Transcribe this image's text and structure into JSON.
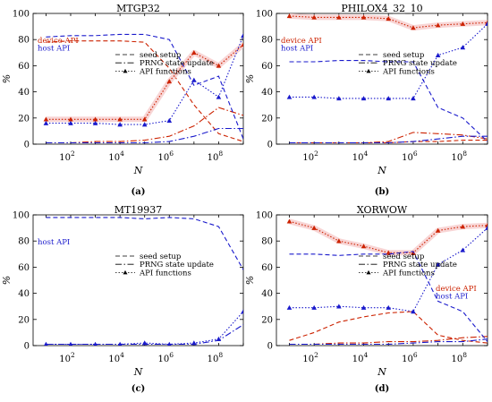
{
  "chart_data": [
    {
      "panel": "a",
      "type": "line",
      "title": "MTGP32",
      "caption": "(a)",
      "xlabel": "N",
      "ylabel": "%",
      "xscale": "log",
      "xlim": [
        3,
        1000000000
      ],
      "ylim": [
        0,
        100
      ],
      "xticks": [
        {
          "value": 100,
          "base": "10",
          "exp": "2"
        },
        {
          "value": 10000,
          "base": "10",
          "exp": "4"
        },
        {
          "value": 1000000,
          "base": "10",
          "exp": "6"
        },
        {
          "value": 100000000,
          "base": "10",
          "exp": "8"
        }
      ],
      "yticks": [
        0,
        20,
        40,
        60,
        80,
        100
      ],
      "x": [
        10,
        100,
        1000,
        10000,
        100000,
        1000000,
        10000000,
        100000000,
        1000000000
      ],
      "legend_groups": [
        {
          "position": "left",
          "lines": [
            {
              "text": "device API",
              "color": "#cc2200"
            },
            {
              "text": "host API",
              "color": "#1a1acc"
            }
          ]
        },
        {
          "position": "right",
          "lines": [
            {
              "text": "seed setup",
              "style": "dashed"
            },
            {
              "text": "PRNG state update",
              "style": "dashdot"
            },
            {
              "text": "API functions",
              "style": "dotted-triangle"
            }
          ]
        }
      ],
      "series": [
        {
          "name": "device API – seed setup",
          "api": "device",
          "style": "dashed",
          "values": [
            78,
            79,
            79,
            79,
            78,
            58,
            30,
            8,
            2
          ]
        },
        {
          "name": "device API – PRNG state update",
          "api": "device",
          "style": "dashdot",
          "values": [
            1,
            1,
            2,
            2,
            3,
            6,
            14,
            28,
            22
          ]
        },
        {
          "name": "device API – API functions",
          "api": "device",
          "style": "dotted-triangle",
          "values": [
            19,
            19,
            19,
            19,
            19,
            48,
            70,
            60,
            76
          ]
        },
        {
          "name": "host API – seed setup",
          "api": "host",
          "style": "dashed",
          "values": [
            82,
            83,
            83,
            84,
            84,
            80,
            45,
            52,
            4
          ]
        },
        {
          "name": "host API – PRNG state update",
          "api": "host",
          "style": "dashdot",
          "values": [
            1,
            1,
            1,
            1,
            1,
            2,
            6,
            12,
            12
          ]
        },
        {
          "name": "host API – API functions",
          "api": "host",
          "style": "dotted-triangle",
          "values": [
            16,
            16,
            16,
            15,
            15,
            18,
            49,
            36,
            83
          ]
        }
      ]
    },
    {
      "panel": "b",
      "type": "line",
      "title": "PHILOX4_32_10",
      "caption": "(b)",
      "xlabel": "N",
      "ylabel": "%",
      "xscale": "log",
      "xlim": [
        3,
        1000000000
      ],
      "ylim": [
        0,
        100
      ],
      "xticks": [
        {
          "value": 100,
          "base": "10",
          "exp": "2"
        },
        {
          "value": 10000,
          "base": "10",
          "exp": "4"
        },
        {
          "value": 1000000,
          "base": "10",
          "exp": "6"
        },
        {
          "value": 100000000,
          "base": "10",
          "exp": "8"
        }
      ],
      "yticks": [
        0,
        20,
        40,
        60,
        80,
        100
      ],
      "x": [
        10,
        100,
        1000,
        10000,
        100000,
        1000000,
        10000000,
        100000000,
        1000000000
      ],
      "legend_groups": [
        {
          "position": "right",
          "lines": [
            {
              "text": "seed setup",
              "style": "dashed"
            },
            {
              "text": "PRNG state update",
              "style": "dashdot"
            },
            {
              "text": "API functions",
              "style": "dotted-triangle"
            }
          ]
        },
        {
          "position": "left",
          "lines": [
            {
              "text": "device API",
              "color": "#cc2200"
            },
            {
              "text": "host API",
              "color": "#1a1acc"
            }
          ]
        }
      ],
      "series": [
        {
          "name": "device API – seed setup",
          "api": "device",
          "style": "dashed",
          "values": [
            1,
            1,
            1,
            1,
            1,
            2,
            2,
            3,
            3
          ]
        },
        {
          "name": "device API – PRNG state update",
          "api": "device",
          "style": "dashdot",
          "values": [
            1,
            1,
            1,
            1,
            2,
            9,
            8,
            7,
            4
          ]
        },
        {
          "name": "device API – API functions",
          "api": "device",
          "style": "dotted-triangle",
          "values": [
            98,
            97,
            97,
            97,
            96,
            89,
            91,
            92,
            93
          ]
        },
        {
          "name": "host API – seed setup",
          "api": "host",
          "style": "dashed",
          "values": [
            63,
            63,
            64,
            64,
            63,
            63,
            28,
            20,
            2
          ]
        },
        {
          "name": "host API – PRNG state update",
          "api": "host",
          "style": "dashdot",
          "values": [
            1,
            1,
            1,
            1,
            1,
            2,
            4,
            6,
            6
          ]
        },
        {
          "name": "host API – API functions",
          "api": "host",
          "style": "dotted-triangle",
          "values": [
            36,
            36,
            35,
            35,
            35,
            35,
            68,
            74,
            92
          ]
        }
      ]
    },
    {
      "panel": "c",
      "type": "line",
      "title": "MT19937",
      "caption": "(c)",
      "xlabel": "N",
      "ylabel": "%",
      "xscale": "log",
      "xlim": [
        3,
        1000000000
      ],
      "ylim": [
        0,
        100
      ],
      "xticks": [
        {
          "value": 100,
          "base": "10",
          "exp": "2"
        },
        {
          "value": 10000,
          "base": "10",
          "exp": "4"
        },
        {
          "value": 1000000,
          "base": "10",
          "exp": "6"
        },
        {
          "value": 100000000,
          "base": "10",
          "exp": "8"
        }
      ],
      "yticks": [
        0,
        20,
        40,
        60,
        80,
        100
      ],
      "x": [
        10,
        100,
        1000,
        10000,
        100000,
        1000000,
        10000000,
        100000000,
        1000000000
      ],
      "legend_groups": [
        {
          "position": "left",
          "lines": [
            {
              "text": "host API",
              "color": "#1a1acc"
            }
          ]
        },
        {
          "position": "right",
          "lines": [
            {
              "text": "seed setup",
              "style": "dashed"
            },
            {
              "text": "PRNG state update",
              "style": "dashdot"
            },
            {
              "text": "API functions",
              "style": "dotted-triangle"
            }
          ]
        }
      ],
      "series": [
        {
          "name": "host API – seed setup",
          "api": "host",
          "style": "dashed",
          "values": [
            98,
            98,
            98,
            98,
            97,
            98,
            97,
            91,
            58
          ]
        },
        {
          "name": "host API – PRNG state update",
          "api": "host",
          "style": "dashdot",
          "values": [
            1,
            1,
            1,
            1,
            1,
            1,
            1,
            4,
            16
          ]
        },
        {
          "name": "host API – API functions",
          "api": "host",
          "style": "dotted-triangle",
          "values": [
            1,
            1,
            1,
            1,
            2,
            1,
            2,
            5,
            26
          ]
        }
      ]
    },
    {
      "panel": "d",
      "type": "line",
      "title": "XORWOW",
      "caption": "(d)",
      "xlabel": "N",
      "ylabel": "%",
      "xscale": "log",
      "xlim": [
        3,
        1000000000
      ],
      "ylim": [
        0,
        100
      ],
      "xticks": [
        {
          "value": 100,
          "base": "10",
          "exp": "2"
        },
        {
          "value": 10000,
          "base": "10",
          "exp": "4"
        },
        {
          "value": 1000000,
          "base": "10",
          "exp": "6"
        },
        {
          "value": 100000000,
          "base": "10",
          "exp": "8"
        }
      ],
      "yticks": [
        0,
        20,
        40,
        60,
        80,
        100
      ],
      "x": [
        10,
        100,
        1000,
        10000,
        100000,
        1000000,
        10000000,
        100000000,
        1000000000
      ],
      "legend_groups": [
        {
          "position": "right",
          "lines": [
            {
              "text": "seed setup",
              "style": "dashed"
            },
            {
              "text": "PRNG state update",
              "style": "dashdot"
            },
            {
              "text": "API functions",
              "style": "dotted-triangle"
            }
          ]
        },
        {
          "position": "right-lower",
          "lines": [
            {
              "text": "device API",
              "color": "#cc2200"
            },
            {
              "text": "host API",
              "color": "#1a1acc"
            }
          ]
        }
      ],
      "series": [
        {
          "name": "device API – seed setup",
          "api": "device",
          "style": "dashed",
          "values": [
            4,
            10,
            18,
            22,
            25,
            26,
            8,
            4,
            2
          ]
        },
        {
          "name": "device API – PRNG state update",
          "api": "device",
          "style": "dashdot",
          "values": [
            1,
            1,
            2,
            2,
            3,
            3,
            4,
            6,
            7
          ]
        },
        {
          "name": "device API – API functions",
          "api": "device",
          "style": "dotted-triangle",
          "values": [
            95,
            90,
            80,
            76,
            71,
            71,
            88,
            91,
            92
          ]
        },
        {
          "name": "host API – seed setup",
          "api": "host",
          "style": "dashed",
          "values": [
            70,
            70,
            69,
            70,
            70,
            72,
            34,
            26,
            3
          ]
        },
        {
          "name": "host API – PRNG state update",
          "api": "host",
          "style": "dashdot",
          "values": [
            1,
            1,
            1,
            1,
            1,
            2,
            3,
            3,
            5
          ]
        },
        {
          "name": "host API – API functions",
          "api": "host",
          "style": "dotted-triangle",
          "values": [
            29,
            29,
            30,
            29,
            29,
            26,
            62,
            73,
            90
          ]
        }
      ]
    }
  ],
  "colors": {
    "device": "#cc2200",
    "host": "#1a1acc",
    "band": "#f6caca"
  }
}
